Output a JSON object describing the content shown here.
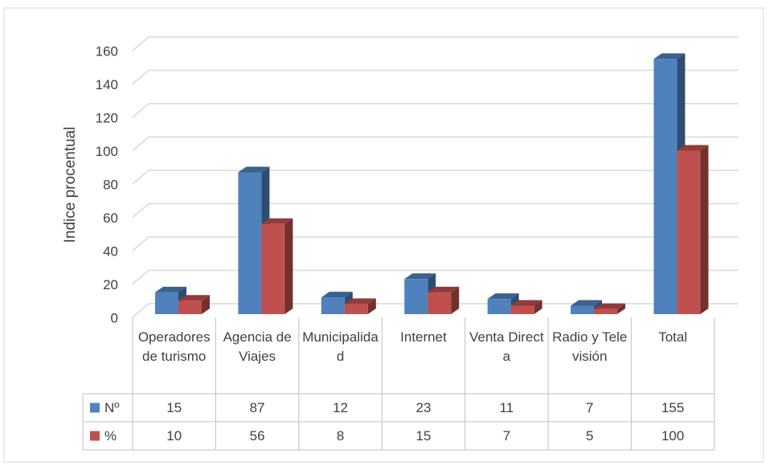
{
  "chart_data": {
    "type": "bar3d",
    "y_label": "Indice procentual",
    "categories": [
      "Operadores de turismo",
      "Agencia de Viajes",
      "Municipalidad",
      "Internet",
      "Venta Directa",
      "Radio y Televisión",
      "Total"
    ],
    "series": [
      {
        "name": "Nº",
        "color": "#4f81bd",
        "values": [
          15,
          87,
          12,
          23,
          11,
          7,
          155
        ]
      },
      {
        "name": "%",
        "color": "#c0504d",
        "values": [
          10,
          56,
          8,
          15,
          7,
          5,
          100
        ]
      }
    ],
    "ylim": [
      0,
      160
    ],
    "yticks": [
      0,
      20,
      40,
      60,
      80,
      100,
      120,
      140,
      160
    ],
    "grid": true,
    "data_table": true
  }
}
